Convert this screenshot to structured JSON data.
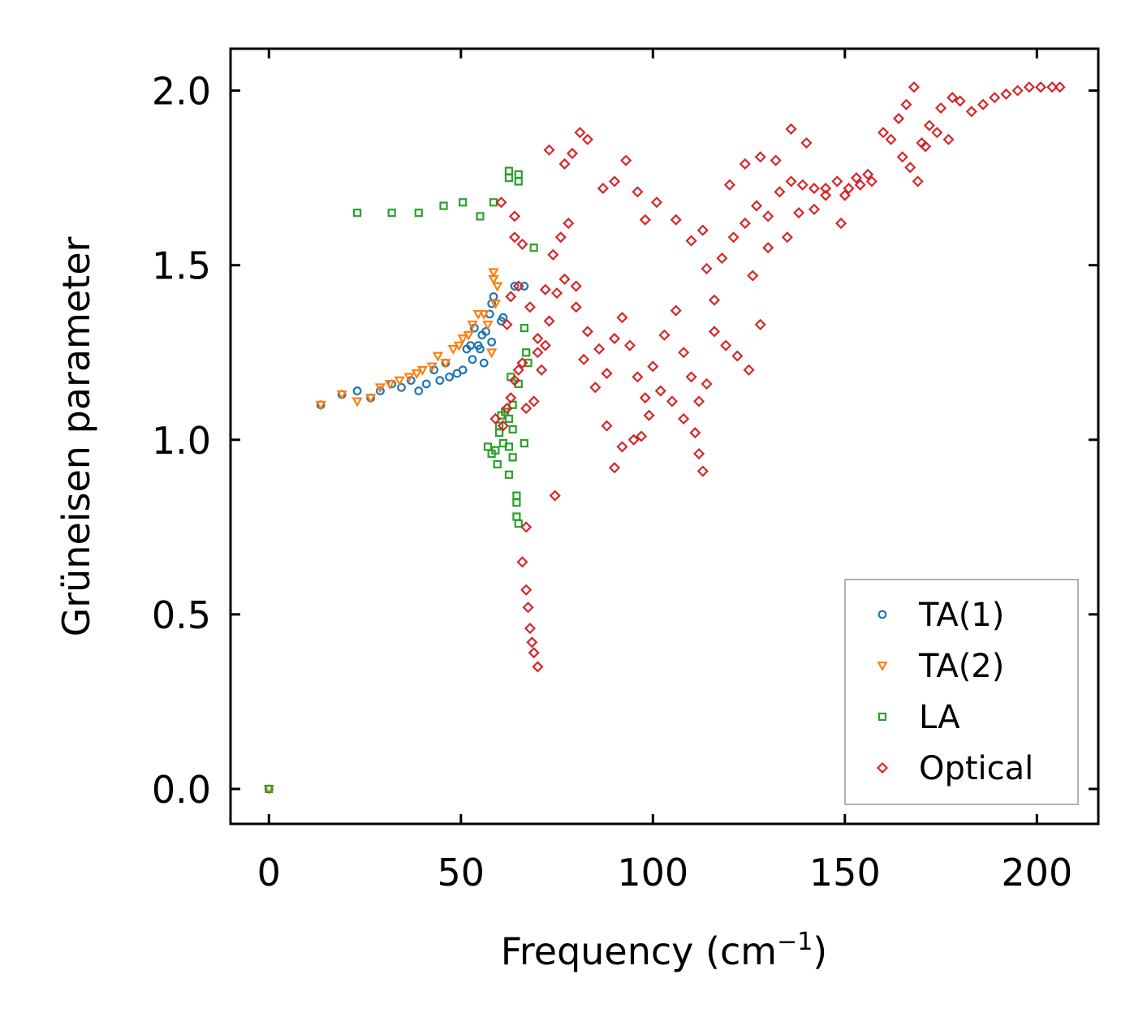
{
  "chart_data": {
    "type": "scatter",
    "title": "",
    "xlabel": "Frequency (cm",
    "xlabel_sup": "−1",
    "xlabel_close": ")",
    "ylabel": "Grüneisen parameter",
    "xlim": [
      -10,
      216
    ],
    "ylim": [
      -0.1,
      2.12
    ],
    "xticks": [
      0,
      50,
      100,
      150,
      200
    ],
    "xtick_labels": [
      "0",
      "50",
      "100",
      "150",
      "200"
    ],
    "yticks": [
      0.0,
      0.5,
      1.0,
      1.5,
      2.0
    ],
    "ytick_labels": [
      "0.0",
      "0.5",
      "1.0",
      "1.5",
      "2.0"
    ],
    "grid": false,
    "legend_position": "lower-right",
    "series": [
      {
        "name": "TA(1)",
        "marker": "circle",
        "color": "#1f77b4",
        "points": [
          [
            0,
            0.0
          ],
          [
            13.5,
            1.1
          ],
          [
            19,
            1.13
          ],
          [
            23,
            1.14
          ],
          [
            26.5,
            1.12
          ],
          [
            29,
            1.14
          ],
          [
            32,
            1.16
          ],
          [
            34.5,
            1.15
          ],
          [
            37,
            1.17
          ],
          [
            39,
            1.14
          ],
          [
            41,
            1.16
          ],
          [
            43,
            1.2
          ],
          [
            44.5,
            1.17
          ],
          [
            46,
            1.22
          ],
          [
            47,
            1.18
          ],
          [
            49,
            1.19
          ],
          [
            50.5,
            1.2
          ],
          [
            51.5,
            1.26
          ],
          [
            52.5,
            1.27
          ],
          [
            53,
            1.23
          ],
          [
            53.5,
            1.32
          ],
          [
            54.5,
            1.27
          ],
          [
            55,
            1.26
          ],
          [
            55.5,
            1.3
          ],
          [
            56,
            1.22
          ],
          [
            56.5,
            1.31
          ],
          [
            57.5,
            1.36
          ],
          [
            58,
            1.28
          ],
          [
            58,
            1.39
          ],
          [
            58.5,
            1.41
          ],
          [
            60.5,
            1.34
          ],
          [
            61,
            1.35
          ],
          [
            64,
            1.44
          ],
          [
            66.5,
            1.44
          ]
        ]
      },
      {
        "name": "TA(2)",
        "marker": "triangle-down",
        "color": "#ff7f0e",
        "points": [
          [
            0,
            0.0
          ],
          [
            13.5,
            1.1
          ],
          [
            19,
            1.13
          ],
          [
            23,
            1.11
          ],
          [
            26.5,
            1.12
          ],
          [
            29,
            1.15
          ],
          [
            31.5,
            1.16
          ],
          [
            34,
            1.17
          ],
          [
            36.5,
            1.18
          ],
          [
            38.5,
            1.19
          ],
          [
            40,
            1.2
          ],
          [
            42.5,
            1.21
          ],
          [
            44,
            1.24
          ],
          [
            46,
            1.22
          ],
          [
            48,
            1.26
          ],
          [
            49.5,
            1.27
          ],
          [
            50.5,
            1.29
          ],
          [
            52,
            1.3
          ],
          [
            53,
            1.33
          ],
          [
            54.5,
            1.36
          ],
          [
            56,
            1.36
          ],
          [
            57,
            1.33
          ],
          [
            58,
            1.25
          ],
          [
            58.5,
            1.46
          ],
          [
            58.5,
            1.48
          ],
          [
            59,
            1.39
          ],
          [
            59.5,
            1.44
          ]
        ]
      },
      {
        "name": "LA",
        "marker": "square",
        "color": "#2ca02c",
        "points": [
          [
            0,
            0.0
          ],
          [
            23,
            1.65
          ],
          [
            32,
            1.65
          ],
          [
            39,
            1.65
          ],
          [
            45.5,
            1.67
          ],
          [
            50.5,
            1.68
          ],
          [
            55,
            1.64
          ],
          [
            58.5,
            1.68
          ],
          [
            62.5,
            1.77
          ],
          [
            62.5,
            1.75
          ],
          [
            65,
            1.76
          ],
          [
            65,
            1.74
          ],
          [
            69,
            1.55
          ],
          [
            66.5,
            1.32
          ],
          [
            67,
            1.25
          ],
          [
            67.5,
            1.22
          ],
          [
            63,
            1.18
          ],
          [
            65,
            1.16
          ],
          [
            63.5,
            1.1
          ],
          [
            62.5,
            1.06
          ],
          [
            61.5,
            1.08
          ],
          [
            60.5,
            1.07
          ],
          [
            60,
            1.04
          ],
          [
            60,
            1.02
          ],
          [
            61,
            0.99
          ],
          [
            62.5,
            0.98
          ],
          [
            63.5,
            1.03
          ],
          [
            66.5,
            0.99
          ],
          [
            57,
            0.98
          ],
          [
            58,
            0.96
          ],
          [
            59,
            0.97
          ],
          [
            59.5,
            0.93
          ],
          [
            62.5,
            0.9
          ],
          [
            63.5,
            0.95
          ],
          [
            64.5,
            0.84
          ],
          [
            64.5,
            0.82
          ],
          [
            64.5,
            0.78
          ],
          [
            65,
            0.76
          ]
        ]
      },
      {
        "name": "Optical",
        "marker": "diamond",
        "color": "#d62728",
        "points": [
          [
            59,
            1.06
          ],
          [
            61,
            1.04
          ],
          [
            62,
            1.09
          ],
          [
            63,
            1.12
          ],
          [
            64,
            1.17
          ],
          [
            65,
            1.2
          ],
          [
            66,
            1.22
          ],
          [
            67,
            0.75
          ],
          [
            66,
            0.65
          ],
          [
            67,
            0.57
          ],
          [
            67.5,
            0.52
          ],
          [
            68,
            0.46
          ],
          [
            68.5,
            0.42
          ],
          [
            69,
            0.39
          ],
          [
            70,
            0.35
          ],
          [
            74.5,
            0.84
          ],
          [
            60.5,
            1.68
          ],
          [
            64,
            1.64
          ],
          [
            64,
            1.58
          ],
          [
            66,
            1.56
          ],
          [
            62,
            1.33
          ],
          [
            63,
            1.41
          ],
          [
            65,
            1.44
          ],
          [
            68,
            1.38
          ],
          [
            70,
            1.29
          ],
          [
            72,
            1.27
          ],
          [
            73,
            1.83
          ],
          [
            77,
            1.79
          ],
          [
            79,
            1.82
          ],
          [
            81,
            1.88
          ],
          [
            83,
            1.86
          ],
          [
            87,
            1.72
          ],
          [
            90,
            1.74
          ],
          [
            93,
            1.8
          ],
          [
            96,
            1.71
          ],
          [
            98,
            1.63
          ],
          [
            101,
            1.68
          ],
          [
            106,
            1.63
          ],
          [
            110,
            1.57
          ],
          [
            113,
            1.6
          ],
          [
            114,
            1.49
          ],
          [
            120,
            1.73
          ],
          [
            124,
            1.79
          ],
          [
            128,
            1.81
          ],
          [
            132,
            1.8
          ],
          [
            136,
            1.89
          ],
          [
            140,
            1.85
          ],
          [
            145,
            1.72
          ],
          [
            150,
            1.7
          ],
          [
            153,
            1.75
          ],
          [
            156,
            1.76
          ],
          [
            149,
            1.62
          ],
          [
            142,
            1.66
          ],
          [
            138,
            1.65
          ],
          [
            135,
            1.58
          ],
          [
            130,
            1.55
          ],
          [
            126,
            1.47
          ],
          [
            128,
            1.33
          ],
          [
            125,
            1.2
          ],
          [
            122,
            1.24
          ],
          [
            119,
            1.27
          ],
          [
            116,
            1.31
          ],
          [
            113,
            0.91
          ],
          [
            112,
            0.96
          ],
          [
            111,
            1.02
          ],
          [
            108,
            1.06
          ],
          [
            105,
            1.11
          ],
          [
            102,
            1.14
          ],
          [
            99,
            1.07
          ],
          [
            97,
            1.01
          ],
          [
            95,
            1.0
          ],
          [
            92,
            0.98
          ],
          [
            90,
            0.92
          ],
          [
            88,
            1.04
          ],
          [
            85,
            1.15
          ],
          [
            82,
            1.23
          ],
          [
            80,
            1.38
          ],
          [
            77,
            1.46
          ],
          [
            75,
            1.42
          ],
          [
            73,
            1.34
          ],
          [
            71,
            1.2
          ],
          [
            69,
            1.11
          ],
          [
            67,
            1.09
          ],
          [
            70,
            1.25
          ],
          [
            72,
            1.43
          ],
          [
            74,
            1.53
          ],
          [
            76,
            1.58
          ],
          [
            78,
            1.62
          ],
          [
            80,
            1.44
          ],
          [
            83,
            1.31
          ],
          [
            86,
            1.26
          ],
          [
            88,
            1.19
          ],
          [
            90,
            1.29
          ],
          [
            92,
            1.35
          ],
          [
            94,
            1.27
          ],
          [
            96,
            1.18
          ],
          [
            98,
            1.12
          ],
          [
            100,
            1.21
          ],
          [
            103,
            1.3
          ],
          [
            106,
            1.37
          ],
          [
            108,
            1.25
          ],
          [
            110,
            1.18
          ],
          [
            112,
            1.11
          ],
          [
            114,
            1.16
          ],
          [
            116,
            1.4
          ],
          [
            118,
            1.52
          ],
          [
            121,
            1.58
          ],
          [
            124,
            1.62
          ],
          [
            127,
            1.67
          ],
          [
            130,
            1.64
          ],
          [
            133,
            1.71
          ],
          [
            136,
            1.74
          ],
          [
            139,
            1.73
          ],
          [
            142,
            1.72
          ],
          [
            145,
            1.7
          ],
          [
            148,
            1.74
          ],
          [
            151,
            1.72
          ],
          [
            154,
            1.73
          ],
          [
            157,
            1.74
          ],
          [
            160,
            1.88
          ],
          [
            162,
            1.86
          ],
          [
            164,
            1.92
          ],
          [
            166,
            1.96
          ],
          [
            168,
            2.01
          ],
          [
            170,
            1.85
          ],
          [
            172,
            1.9
          ],
          [
            175,
            1.95
          ],
          [
            178,
            1.98
          ],
          [
            180,
            1.97
          ],
          [
            183,
            1.94
          ],
          [
            186,
            1.96
          ],
          [
            189,
            1.98
          ],
          [
            192,
            1.99
          ],
          [
            195,
            2.0
          ],
          [
            198,
            2.01
          ],
          [
            201,
            2.01
          ],
          [
            204,
            2.01
          ],
          [
            206,
            2.01
          ],
          [
            165,
            1.81
          ],
          [
            167,
            1.78
          ],
          [
            169,
            1.74
          ],
          [
            171,
            1.84
          ],
          [
            174,
            1.88
          ],
          [
            177,
            1.86
          ]
        ]
      }
    ]
  }
}
